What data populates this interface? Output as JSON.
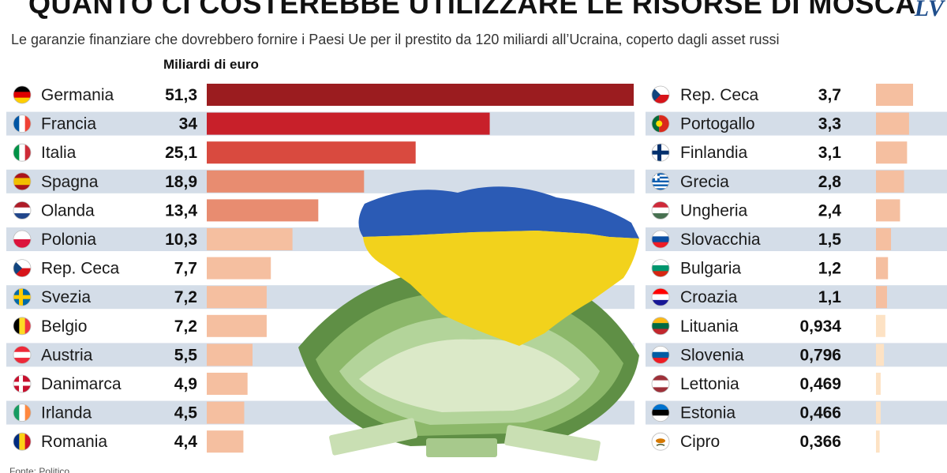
{
  "header": {
    "title": "QUANTO CI COSTEREBBE UTILIZZARE LE RISORSE DI MOSCA",
    "logo": "LV",
    "subtitle": "Le garanzie finanziare che dovrebbero fornire i Paesi Ue per il prestito da 120 miliardi all’Ucraina, coperto dagli asset russi",
    "unit_label": "Miliardi di euro",
    "source": "Fonte: Politico"
  },
  "colors": {
    "row_band": "#d4dde8",
    "scale": [
      "#9b1c1f",
      "#c8202a",
      "#d94a3f",
      "#e88c70",
      "#f5bfa0",
      "#fde2c4"
    ]
  },
  "chart_data": {
    "type": "bar",
    "orientation": "horizontal",
    "title": "QUANTO CI COSTEREBBE UTILIZZARE LE RISORSE DI MOSCA",
    "xlabel": "Miliardi di euro",
    "ylabel": "",
    "grid": false,
    "panels": [
      {
        "name": "left",
        "xlim": [
          0,
          51.3
        ],
        "categories": [
          "Germania",
          "Francia",
          "Italia",
          "Spagna",
          "Olanda",
          "Polonia",
          "Rep. Ceca",
          "Svezia",
          "Belgio",
          "Austria",
          "Danimarca",
          "Irlanda",
          "Romania"
        ],
        "values": [
          51.3,
          34,
          25.1,
          18.9,
          13.4,
          10.3,
          7.7,
          7.2,
          7.2,
          5.5,
          4.9,
          4.5,
          4.4
        ],
        "labels": [
          "51,3",
          "34",
          "25,1",
          "18,9",
          "13,4",
          "10,3",
          "7,7",
          "7,2",
          "7,2",
          "5,5",
          "4,9",
          "4,5",
          "4,4"
        ]
      },
      {
        "name": "right",
        "xlim": [
          0,
          3.7
        ],
        "categories": [
          "Rep. Ceca",
          "Portogallo",
          "Finlandia",
          "Grecia",
          "Ungheria",
          "Slovacchia",
          "Bulgaria",
          "Croazia",
          "Lituania",
          "Slovenia",
          "Lettonia",
          "Estonia",
          "Cipro"
        ],
        "values": [
          3.7,
          3.3,
          3.1,
          2.8,
          2.4,
          1.5,
          1.2,
          1.1,
          0.934,
          0.796,
          0.469,
          0.466,
          0.366
        ],
        "labels": [
          "3,7",
          "3,3",
          "3,1",
          "2,8",
          "2,4",
          "1,5",
          "1,2",
          "1,1",
          "0,934",
          "0,796",
          "0,469",
          "0,466",
          "0,366"
        ]
      }
    ]
  }
}
